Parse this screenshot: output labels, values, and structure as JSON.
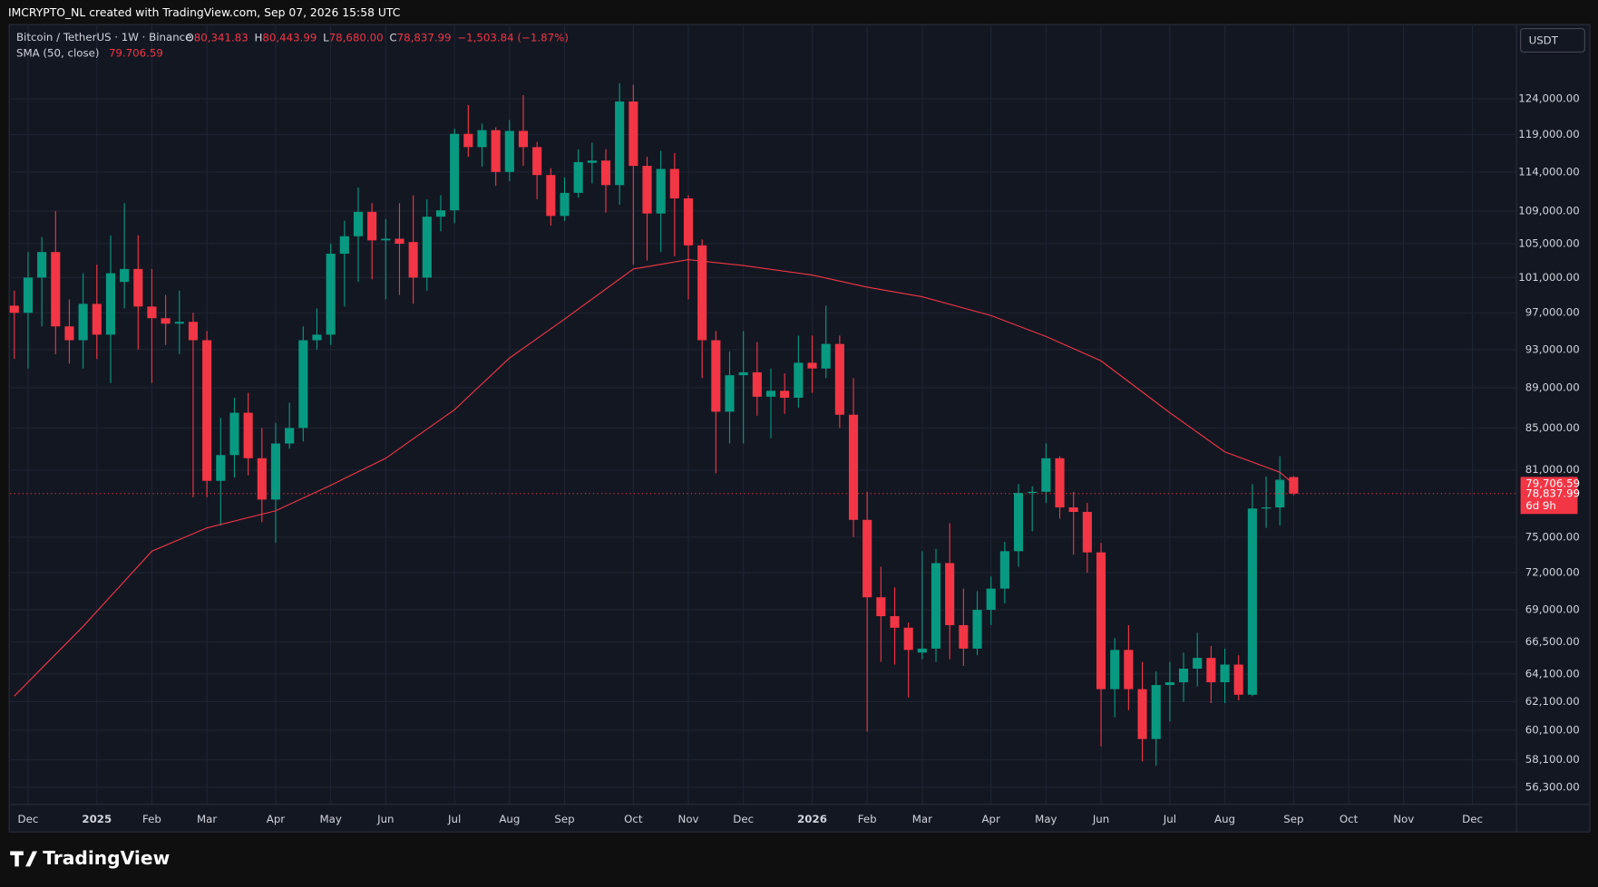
{
  "header": "IMCRYPTO_NL created with TradingView.com, Sep 07, 2026 15:58 UTC",
  "chart_data": {
    "type": "candlestick",
    "symbol": "Bitcoin / TetherUS · 1W · Binance",
    "ohlc_legend": [
      {
        "key": "O",
        "value": "80,341.83"
      },
      {
        "key": "H",
        "value": "80,443.99"
      },
      {
        "key": "L",
        "value": "78,680.00"
      },
      {
        "key": "C",
        "value": "78,837.99"
      }
    ],
    "change": "−1,503.84 (−1.87%)",
    "currency": "USDT",
    "up_color": "#089981",
    "down_color": "#f23645",
    "log_scale": true,
    "grid": true,
    "xlim": [
      -0.3,
      109.2
    ],
    "xticks": [
      {
        "value": 1,
        "label": "Dec"
      },
      {
        "value": 6,
        "label": "2025"
      },
      {
        "value": 10,
        "label": "Feb"
      },
      {
        "value": 14,
        "label": "Mar"
      },
      {
        "value": 19,
        "label": "Apr"
      },
      {
        "value": 23,
        "label": "May"
      },
      {
        "value": 27,
        "label": "Jun"
      },
      {
        "value": 32,
        "label": "Jul"
      },
      {
        "value": 36,
        "label": "Aug"
      },
      {
        "value": 40,
        "label": "Sep"
      },
      {
        "value": 45,
        "label": "Oct"
      },
      {
        "value": 49,
        "label": "Nov"
      },
      {
        "value": 53,
        "label": "Dec"
      },
      {
        "value": 58,
        "label": "2026"
      },
      {
        "value": 62,
        "label": "Feb"
      },
      {
        "value": 66,
        "label": "Mar"
      },
      {
        "value": 71,
        "label": "Apr"
      },
      {
        "value": 75,
        "label": "May"
      },
      {
        "value": 79,
        "label": "Jun"
      },
      {
        "value": 84,
        "label": "Jul"
      },
      {
        "value": 88,
        "label": "Aug"
      },
      {
        "value": 93,
        "label": "Sep"
      },
      {
        "value": 97,
        "label": "Oct"
      },
      {
        "value": 101,
        "label": "Nov"
      },
      {
        "value": 106,
        "label": "Dec"
      }
    ],
    "ylim": [
      55200,
      135000
    ],
    "yticks": [
      {
        "value": 124000,
        "label": "124,000.00"
      },
      {
        "value": 119000,
        "label": "119,000.00"
      },
      {
        "value": 114000,
        "label": "114,000.00"
      },
      {
        "value": 109000,
        "label": "109,000.00"
      },
      {
        "value": 105000,
        "label": "105,000.00"
      },
      {
        "value": 101000,
        "label": "101,000.00"
      },
      {
        "value": 97000,
        "label": "97,000.00"
      },
      {
        "value": 93000,
        "label": "93,000.00"
      },
      {
        "value": 89000,
        "label": "89,000.00"
      },
      {
        "value": 85000,
        "label": "85,000.00"
      },
      {
        "value": 81000,
        "label": "81,000.00"
      },
      {
        "value": 75000,
        "label": "75,000.00"
      },
      {
        "value": 72000,
        "label": "72,000.00"
      },
      {
        "value": 69000,
        "label": "69,000.00"
      },
      {
        "value": 66500,
        "label": "66,500.00"
      },
      {
        "value": 64100,
        "label": "64,100.00"
      },
      {
        "value": 62100,
        "label": "62,100.00"
      },
      {
        "value": 60100,
        "label": "60,100.00"
      },
      {
        "value": 58100,
        "label": "58,100.00"
      },
      {
        "value": 56300,
        "label": "56,300.00"
      }
    ],
    "open": [
      97800,
      97000,
      101000,
      104000,
      95500,
      94000,
      98000,
      94600,
      100500,
      102000,
      97700,
      96400,
      95800,
      96000,
      94000,
      80000,
      82400,
      86500,
      82100,
      78300,
      83500,
      85000,
      94000,
      94600,
      103800,
      105900,
      108900,
      105400,
      105600,
      105200,
      101000,
      108300,
      109100,
      119100,
      117300,
      119600,
      114000,
      119500,
      117300,
      113600,
      108400,
      111300,
      115200,
      115500,
      112300,
      123600,
      114800,
      108700,
      114400,
      110600,
      104800,
      94000,
      86600,
      90300,
      90600,
      88100,
      88700,
      88000,
      91600,
      91000,
      93600,
      86300,
      76500,
      70000,
      68500,
      67600,
      65700,
      66000,
      72800,
      67800,
      66000,
      69000,
      70700,
      73800,
      78900,
      79000,
      82100,
      77600,
      77200,
      73700,
      63000,
      65900,
      63000,
      59500,
      63300,
      63500,
      64500,
      65300,
      63500,
      64800,
      62600,
      77500,
      77600,
      80341.83
    ],
    "high": [
      99500,
      104000,
      105800,
      109000,
      98500,
      101500,
      102500,
      106000,
      110000,
      106000,
      102000,
      99000,
      99500,
      97000,
      95000,
      86000,
      88000,
      88500,
      85000,
      85500,
      87500,
      95500,
      97500,
      105000,
      107800,
      112000,
      110000,
      108000,
      110000,
      111000,
      110500,
      111000,
      119800,
      123100,
      120500,
      120000,
      121000,
      124500,
      118000,
      114500,
      113300,
      117000,
      117900,
      117000,
      126200,
      126000,
      116000,
      116800,
      116500,
      111000,
      105500,
      95000,
      92800,
      95000,
      93800,
      91000,
      90500,
      94500,
      94500,
      97800,
      94500,
      90000,
      79000,
      72500,
      70800,
      68000,
      73800,
      74000,
      76200,
      70700,
      70500,
      71700,
      74600,
      79700,
      79500,
      83500,
      82300,
      79000,
      78000,
      74500,
      66800,
      67800,
      65000,
      64300,
      65000,
      65700,
      67200,
      66200,
      66000,
      65500,
      79700,
      80400,
      82300,
      80443.99
    ],
    "low": [
      92000,
      91000,
      95500,
      92500,
      91500,
      91000,
      92000,
      89500,
      97500,
      93000,
      89500,
      93500,
      92500,
      78500,
      78500,
      76000,
      80300,
      80500,
      76300,
      74500,
      83000,
      83700,
      93000,
      93500,
      97700,
      100500,
      100800,
      98500,
      99000,
      98000,
      99500,
      106500,
      107500,
      116000,
      114700,
      112200,
      112800,
      114800,
      110500,
      107200,
      107800,
      110700,
      112500,
      108800,
      109800,
      102500,
      103000,
      104000,
      103500,
      98500,
      90000,
      80700,
      83500,
      83500,
      86200,
      84000,
      86400,
      87000,
      88500,
      90000,
      85000,
      75000,
      60000,
      65000,
      64800,
      62400,
      65200,
      65000,
      65200,
      64700,
      65500,
      67800,
      69500,
      72500,
      75500,
      78000,
      76600,
      73500,
      72000,
      59000,
      61000,
      61500,
      58000,
      57700,
      60700,
      62100,
      63200,
      62000,
      62000,
      62200,
      62500,
      75800,
      76000,
      78680
    ],
    "close": [
      97000,
      101000,
      104000,
      95500,
      94000,
      98000,
      94600,
      101500,
      102000,
      97700,
      96400,
      95800,
      96000,
      94000,
      80000,
      82400,
      86500,
      82100,
      78300,
      83500,
      85000,
      94000,
      94600,
      103800,
      105900,
      108900,
      105400,
      105600,
      105000,
      101000,
      108300,
      109100,
      119100,
      117300,
      119600,
      114000,
      119500,
      117300,
      113600,
      108400,
      111300,
      115300,
      115500,
      112300,
      123600,
      114800,
      108700,
      114400,
      110600,
      104800,
      94000,
      86600,
      90300,
      90600,
      88100,
      88700,
      88000,
      91600,
      91000,
      93600,
      86300,
      76500,
      70000,
      68500,
      67600,
      65900,
      66000,
      72800,
      67800,
      66000,
      69000,
      70700,
      73800,
      78900,
      79000,
      82100,
      77600,
      77200,
      73700,
      63000,
      65900,
      63000,
      59500,
      63300,
      63500,
      64500,
      65300,
      63500,
      64800,
      62600,
      77500,
      77600,
      80100,
      78837.99
    ],
    "sma": {
      "name": "SMA (50, close)",
      "label": "79.706.59",
      "color": "#f23645",
      "x": [
        0,
        5,
        10,
        14,
        19,
        23,
        27,
        32,
        36,
        40,
        45,
        49,
        53,
        58,
        62,
        66,
        71,
        75,
        79,
        84,
        88,
        92,
        93
      ],
      "values": [
        62500,
        67700,
        73800,
        75800,
        77300,
        79600,
        82100,
        86800,
        92100,
        96300,
        102000,
        103100,
        102400,
        101300,
        99900,
        98800,
        96700,
        94400,
        91800,
        86500,
        82700,
        80800,
        79706.59
      ]
    },
    "price_labels": {
      "sma": "79,706.59",
      "close": "78,837.99",
      "countdown": "6d 9h"
    },
    "brand": "TradingView"
  }
}
